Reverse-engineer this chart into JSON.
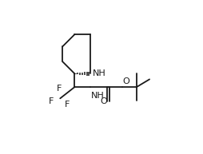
{
  "background_color": "#ffffff",
  "line_color": "#1a1a1a",
  "line_width": 1.3,
  "font_size": 8,
  "figsize": [
    2.54,
    1.93
  ],
  "dpi": 100,
  "xlim": [
    -0.05,
    1.1
  ],
  "ylim": [
    -0.05,
    1.1
  ]
}
